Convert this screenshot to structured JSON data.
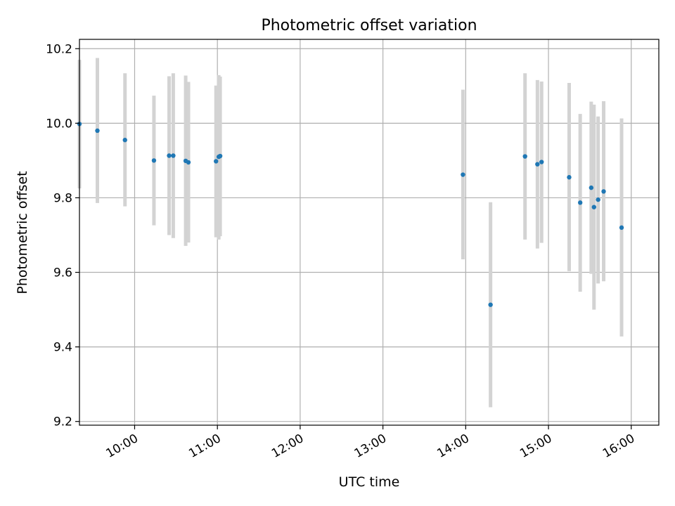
{
  "chart_data": {
    "type": "scatter",
    "title": "Photometric offset variation",
    "xlabel": "UTC time",
    "ylabel": "Photometric offset",
    "xlim": [
      "09:20",
      "16:20"
    ],
    "ylim": [
      9.19,
      10.225
    ],
    "grid": true,
    "x_ticks": [
      "10:00",
      "11:00",
      "12:00",
      "13:00",
      "14:00",
      "15:00",
      "16:00"
    ],
    "y_ticks": [
      9.2,
      9.4,
      9.6,
      9.8,
      10.0,
      10.2
    ],
    "y_tick_labels": [
      "9.2",
      "9.4",
      "9.6",
      "9.8",
      "10.0",
      "10.2"
    ],
    "colors": {
      "point": "#1f77b4",
      "errorbar": "#d3d3d3",
      "grid": "#b0b0b0"
    },
    "points": [
      {
        "x": "09:20",
        "y": 9.998,
        "err_low": 9.825,
        "err_high": 10.17
      },
      {
        "x": "09:33",
        "y": 9.98,
        "err_low": 9.786,
        "err_high": 10.175
      },
      {
        "x": "09:53",
        "y": 9.955,
        "err_low": 9.777,
        "err_high": 10.134
      },
      {
        "x": "10:14",
        "y": 9.9,
        "err_low": 9.726,
        "err_high": 10.074
      },
      {
        "x": "10:25",
        "y": 9.913,
        "err_low": 9.7,
        "err_high": 10.126
      },
      {
        "x": "10:28",
        "y": 9.913,
        "err_low": 9.692,
        "err_high": 10.134
      },
      {
        "x": "10:37",
        "y": 9.899,
        "err_low": 9.671,
        "err_high": 10.128
      },
      {
        "x": "10:39",
        "y": 9.895,
        "err_low": 9.68,
        "err_high": 10.111
      },
      {
        "x": "10:59",
        "y": 9.898,
        "err_low": 9.694,
        "err_high": 10.101
      },
      {
        "x": "11:01",
        "y": 9.91,
        "err_low": 9.688,
        "err_high": 10.129
      },
      {
        "x": "11:02",
        "y": 9.912,
        "err_low": 9.697,
        "err_high": 10.125
      },
      {
        "x": "13:58",
        "y": 9.862,
        "err_low": 9.635,
        "err_high": 10.09
      },
      {
        "x": "14:18",
        "y": 9.513,
        "err_low": 9.238,
        "err_high": 9.788
      },
      {
        "x": "14:43",
        "y": 9.911,
        "err_low": 9.688,
        "err_high": 10.134
      },
      {
        "x": "14:52",
        "y": 9.89,
        "err_low": 9.664,
        "err_high": 10.116
      },
      {
        "x": "14:55",
        "y": 9.896,
        "err_low": 9.679,
        "err_high": 10.112
      },
      {
        "x": "15:15",
        "y": 9.855,
        "err_low": 9.603,
        "err_high": 10.108
      },
      {
        "x": "15:23",
        "y": 9.787,
        "err_low": 9.548,
        "err_high": 10.025
      },
      {
        "x": "15:31",
        "y": 9.827,
        "err_low": 9.596,
        "err_high": 10.058
      },
      {
        "x": "15:33",
        "y": 9.775,
        "err_low": 9.5,
        "err_high": 10.05
      },
      {
        "x": "15:36",
        "y": 9.795,
        "err_low": 9.57,
        "err_high": 10.018
      },
      {
        "x": "15:40",
        "y": 9.817,
        "err_low": 9.576,
        "err_high": 10.059
      },
      {
        "x": "15:53",
        "y": 9.72,
        "err_low": 9.428,
        "err_high": 10.013
      }
    ]
  }
}
